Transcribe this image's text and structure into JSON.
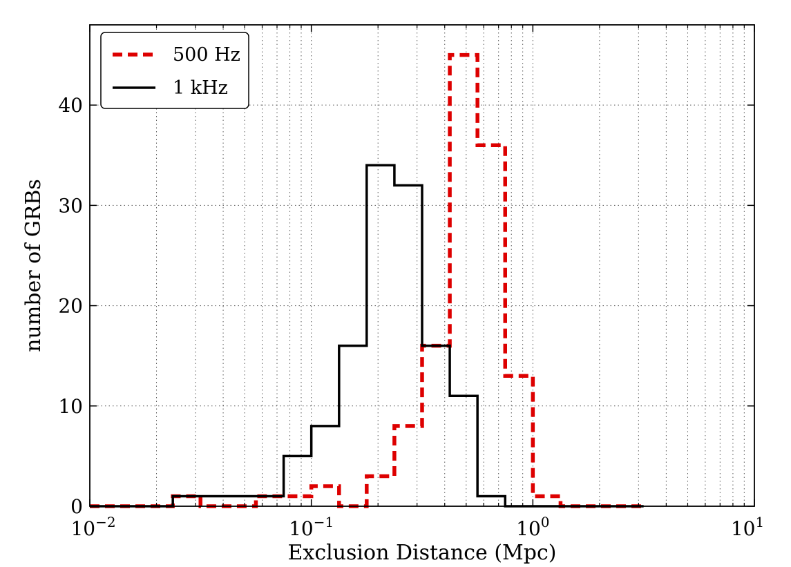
{
  "chart_data": {
    "type": "line",
    "drawstyle": "steps",
    "xlabel": "Exclusion Distance (Mpc)",
    "ylabel": "number of GRBs",
    "xscale": "log",
    "xlim": [
      0.01,
      10
    ],
    "ylim": [
      0,
      48
    ],
    "grid": true,
    "legend_position": "top-left",
    "x_ticks": [
      {
        "value": 0.01,
        "base": "10",
        "exp": "−2"
      },
      {
        "value": 0.1,
        "base": "10",
        "exp": "−1"
      },
      {
        "value": 1,
        "base": "10",
        "exp": "0"
      },
      {
        "value": 10,
        "base": "10",
        "exp": "1"
      }
    ],
    "y_ticks": [
      0,
      10,
      20,
      30,
      40
    ],
    "bin_edges": [
      0.01,
      0.0133,
      0.0178,
      0.0237,
      0.0316,
      0.0422,
      0.0562,
      0.075,
      0.1,
      0.1334,
      0.1778,
      0.2371,
      0.3162,
      0.4217,
      0.5623,
      0.7499,
      1.0,
      1.3335,
      1.7783,
      2.3714,
      3.1623
    ],
    "series": [
      {
        "name": "500 Hz",
        "color": "#dd0000",
        "dash": "dashed",
        "counts": [
          0,
          0,
          0,
          1,
          0,
          0,
          1,
          1,
          2,
          0,
          3,
          8,
          16,
          45,
          36,
          13,
          1,
          0,
          0,
          0
        ]
      },
      {
        "name": "1 kHz",
        "color": "#000000",
        "dash": "solid",
        "counts": [
          0,
          0,
          0,
          1,
          1,
          1,
          1,
          5,
          8,
          16,
          34,
          32,
          16,
          11,
          1,
          0,
          0,
          0,
          0,
          0
        ]
      }
    ]
  }
}
